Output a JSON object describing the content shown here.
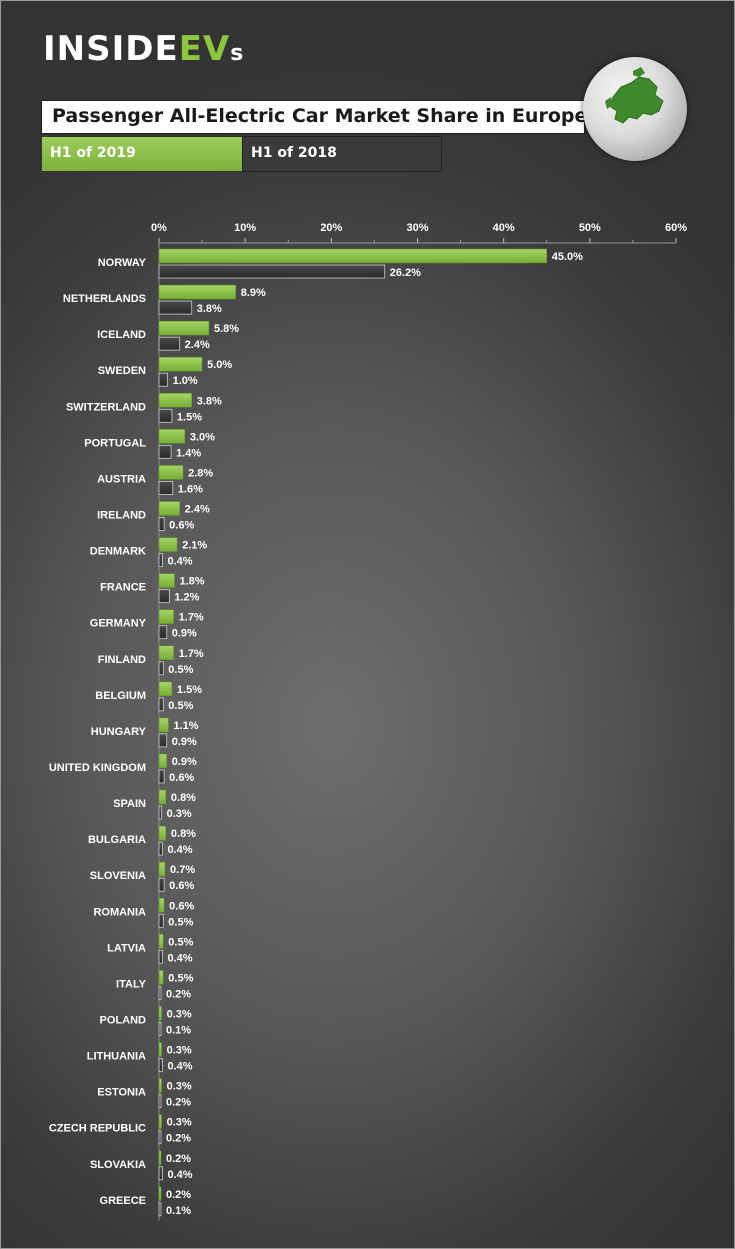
{
  "brand": {
    "part1": "INSIDE",
    "part2": "EV",
    "part3": "s"
  },
  "colors": {
    "series_2019": "#8dc63f",
    "series_2018": "#3a3a3a",
    "globe_land": "#3f8a2c"
  },
  "chart_data": {
    "type": "bar",
    "orientation": "horizontal",
    "title": "Passenger All-Electric Car Market Share in Europe",
    "xlim": [
      0,
      60
    ],
    "x_ticks": [
      "0%",
      "10%",
      "20%",
      "30%",
      "40%",
      "50%",
      "60%"
    ],
    "value_unit": "%",
    "legend_position": "top",
    "categories": [
      "NORWAY",
      "NETHERLANDS",
      "ICELAND",
      "SWEDEN",
      "SWITZERLAND",
      "PORTUGAL",
      "AUSTRIA",
      "IRELAND",
      "DENMARK",
      "FRANCE",
      "GERMANY",
      "FINLAND",
      "BELGIUM",
      "HUNGARY",
      "UNITED KINGDOM",
      "SPAIN",
      "BULGARIA",
      "SLOVENIA",
      "ROMANIA",
      "LATVIA",
      "ITALY",
      "POLAND",
      "LITHUANIA",
      "ESTONIA",
      "CZECH REPUBLIC",
      "SLOVAKIA",
      "GREECE"
    ],
    "series": [
      {
        "name": "H1 of 2019",
        "values": [
          45.0,
          8.9,
          5.8,
          5.0,
          3.8,
          3.0,
          2.8,
          2.4,
          2.1,
          1.8,
          1.7,
          1.7,
          1.5,
          1.1,
          0.9,
          0.8,
          0.8,
          0.7,
          0.6,
          0.5,
          0.5,
          0.3,
          0.3,
          0.3,
          0.3,
          0.2,
          0.2
        ]
      },
      {
        "name": "H1 of 2018",
        "values": [
          26.2,
          3.8,
          2.4,
          1.0,
          1.5,
          1.4,
          1.6,
          0.6,
          0.4,
          1.2,
          0.9,
          0.5,
          0.5,
          0.9,
          0.6,
          0.3,
          0.4,
          0.6,
          0.5,
          0.4,
          0.2,
          0.1,
          0.4,
          0.2,
          0.2,
          0.4,
          0.1
        ]
      }
    ]
  }
}
